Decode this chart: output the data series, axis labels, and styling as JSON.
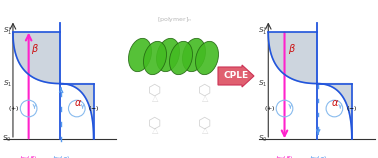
{
  "bg": "#ffffff",
  "panel": {
    "fill_color": "#b8c4d0",
    "fill_alpha": 0.7,
    "curve_color": "#2255dd",
    "curve_lw": 1.2,
    "divider_color": "#2255dd",
    "axis_color": "#333333",
    "s_label_color": "#333333",
    "beta_color": "#cc1111",
    "alpha_color": "#cc1111",
    "magenta": "#ff22cc",
    "blue_arr": "#5599ee",
    "circ_color": "#88bbee",
    "title_color": "#ff22cc"
  },
  "cple_fill": "#e06070",
  "cple_edge": "#cc3355",
  "cple_text": "#cc3355",
  "helix_fill": "#44bb22",
  "helix_edge": "#226611"
}
